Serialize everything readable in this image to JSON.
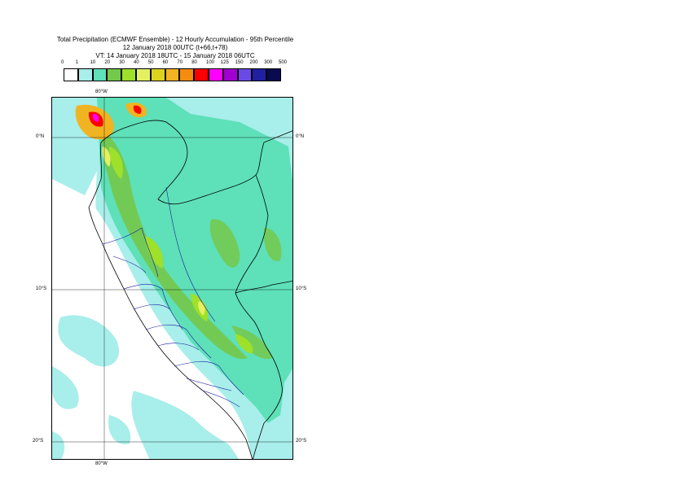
{
  "title": {
    "line1": "Total Precipitation (ECMWF Ensemble) - 12 Hourly Accumulation - 95th Percentile",
    "line2": "12 January 2018 00UTC (t+66,t+78)",
    "line3": "VT: 14 January 2018 18UTC - 15 January 2018 06UTC"
  },
  "legend": {
    "levels": [
      "0",
      "1",
      "10",
      "20",
      "30",
      "40",
      "50",
      "60",
      "70",
      "80",
      "100",
      "125",
      "150",
      "200",
      "300",
      "500"
    ],
    "colors": [
      "#ffffff",
      "#a8eeea",
      "#5ee0b8",
      "#74c84a",
      "#9ee02a",
      "#e4f060",
      "#dcd220",
      "#f0b422",
      "#f48c10",
      "#ff0000",
      "#ff00ff",
      "#a000d0",
      "#6a4ae6",
      "#2020a0",
      "#0a0a50"
    ]
  },
  "map": {
    "lat_labels": [
      "0°N",
      "10°S",
      "20°S"
    ],
    "lon_labels": [
      "80°W",
      "80°W"
    ]
  }
}
